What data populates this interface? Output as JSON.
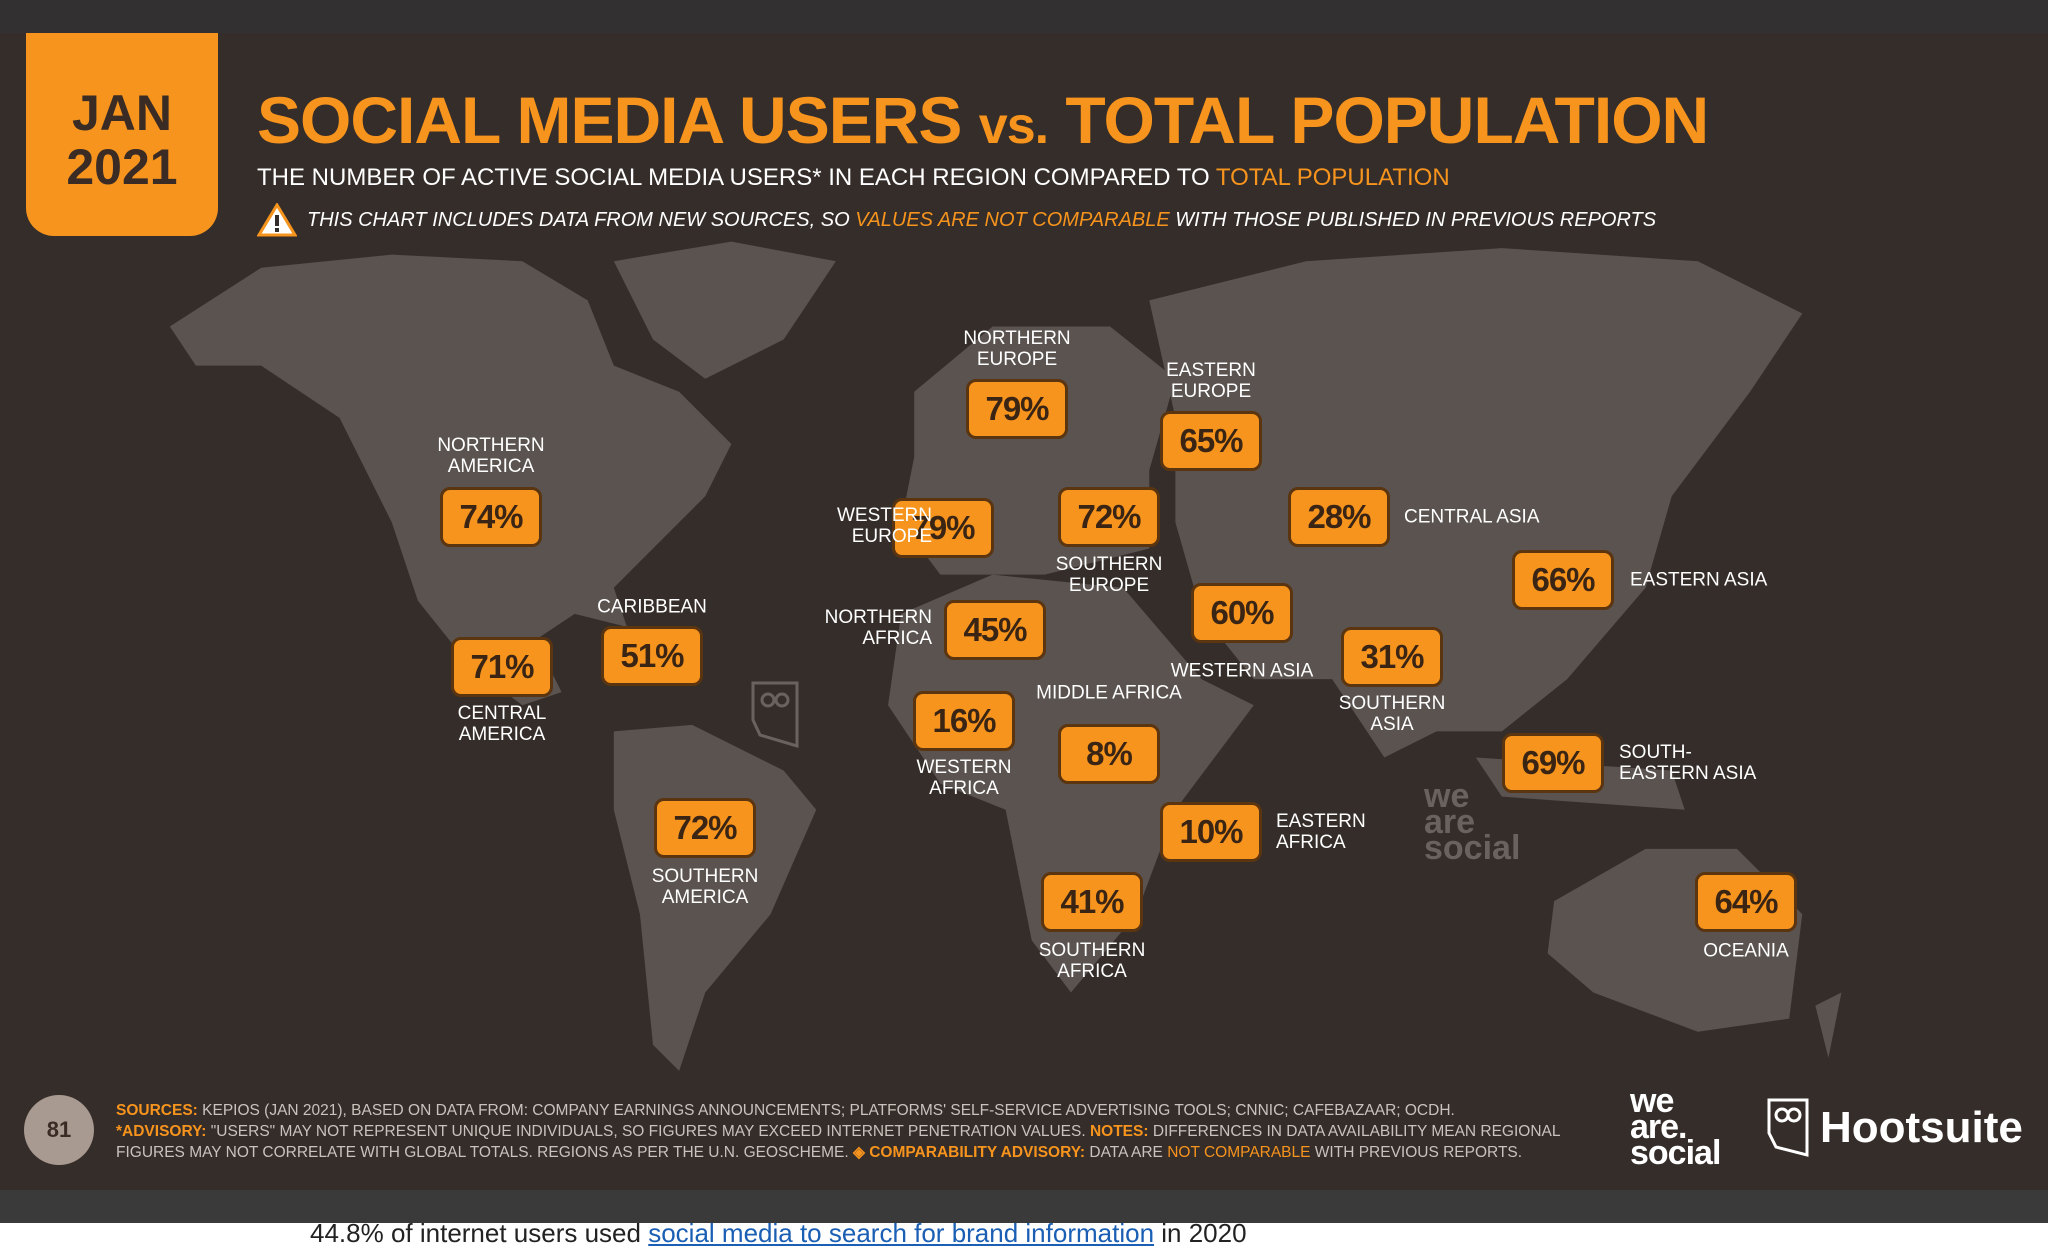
{
  "header": {
    "date_month": "JAN",
    "date_year": "2021",
    "title_part1": "SOCIAL MEDIA USERS",
    "title_vs": "vs.",
    "title_part2": "TOTAL POPULATION",
    "subtitle": "THE NUMBER OF ACTIVE SOCIAL MEDIA USERS* IN EACH REGION COMPARED TO",
    "subtitle_highlight": "TOTAL POPULATION",
    "warning_pre": "THIS CHART INCLUDES DATA FROM NEW SOURCES, SO",
    "warning_highlight": "VALUES ARE NOT COMPARABLE",
    "warning_post": "WITH THOSE PUBLISHED IN PREVIOUS REPORTS",
    "warning_icon": "warning-triangle-icon"
  },
  "colors": {
    "accent": "#f7941d",
    "background": "#352d2a",
    "land": "#5a5350"
  },
  "regions": [
    {
      "name": "NORTHERN EUROPE",
      "value": "79%"
    },
    {
      "name": "EASTERN EUROPE",
      "value": "65%"
    },
    {
      "name": "NORTHERN AMERICA",
      "value": "74%"
    },
    {
      "name": "WESTERN EUROPE",
      "value": "79%"
    },
    {
      "name": "SOUTHERN EUROPE",
      "value": "72%"
    },
    {
      "name": "CENTRAL ASIA",
      "value": "28%"
    },
    {
      "name": "EASTERN ASIA",
      "value": "66%"
    },
    {
      "name": "CARIBBEAN",
      "value": "51%"
    },
    {
      "name": "CENTRAL AMERICA",
      "value": "71%"
    },
    {
      "name": "NORTHERN AFRICA",
      "value": "45%"
    },
    {
      "name": "WESTERN ASIA",
      "value": "60%"
    },
    {
      "name": "SOUTHERN ASIA",
      "value": "31%"
    },
    {
      "name": "WESTERN AFRICA",
      "value": "16%"
    },
    {
      "name": "MIDDLE AFRICA",
      "value": "8%"
    },
    {
      "name": "SOUTH-EASTERN ASIA",
      "value": "69%"
    },
    {
      "name": "SOUTHERN AMERICA",
      "value": "72%"
    },
    {
      "name": "EASTERN AFRICA",
      "value": "10%"
    },
    {
      "name": "SOUTHERN AFRICA",
      "value": "41%"
    },
    {
      "name": "OCEANIA",
      "value": "64%"
    }
  ],
  "footer": {
    "page_number": "81",
    "sources_label": "SOURCES:",
    "sources_text": "KEPIOS (JAN 2021), BASED ON DATA FROM: COMPANY EARNINGS ANNOUNCEMENTS; PLATFORMS' SELF-SERVICE ADVERTISING TOOLS; CNNIC; CAFEBAZAAR; OCDH.",
    "advisory_label": "*ADVISORY:",
    "advisory_text": "\"USERS\" MAY NOT REPRESENT UNIQUE INDIVIDUALS, SO FIGURES MAY EXCEED INTERNET PENETRATION VALUES.",
    "notes_label": "NOTES:",
    "notes_text": "DIFFERENCES IN DATA AVAILABILITY MEAN REGIONAL",
    "notes_text2": "FIGURES MAY NOT CORRELATE WITH GLOBAL TOTALS. REGIONS AS PER THE U.N. GEOSCHEME.",
    "comparability_label": "◈ COMPARABILITY ADVISORY:",
    "comparability_pre": "DATA ARE",
    "comparability_highlight": "NOT COMPARABLE",
    "comparability_post": "WITH PREVIOUS REPORTS.",
    "logo_was": "we are social",
    "logo_hootsuite": "Hootsuite"
  },
  "below_text": {
    "pre": "44.8% of internet users used",
    "link": "social media to search for brand information",
    "post": "in 2020"
  }
}
